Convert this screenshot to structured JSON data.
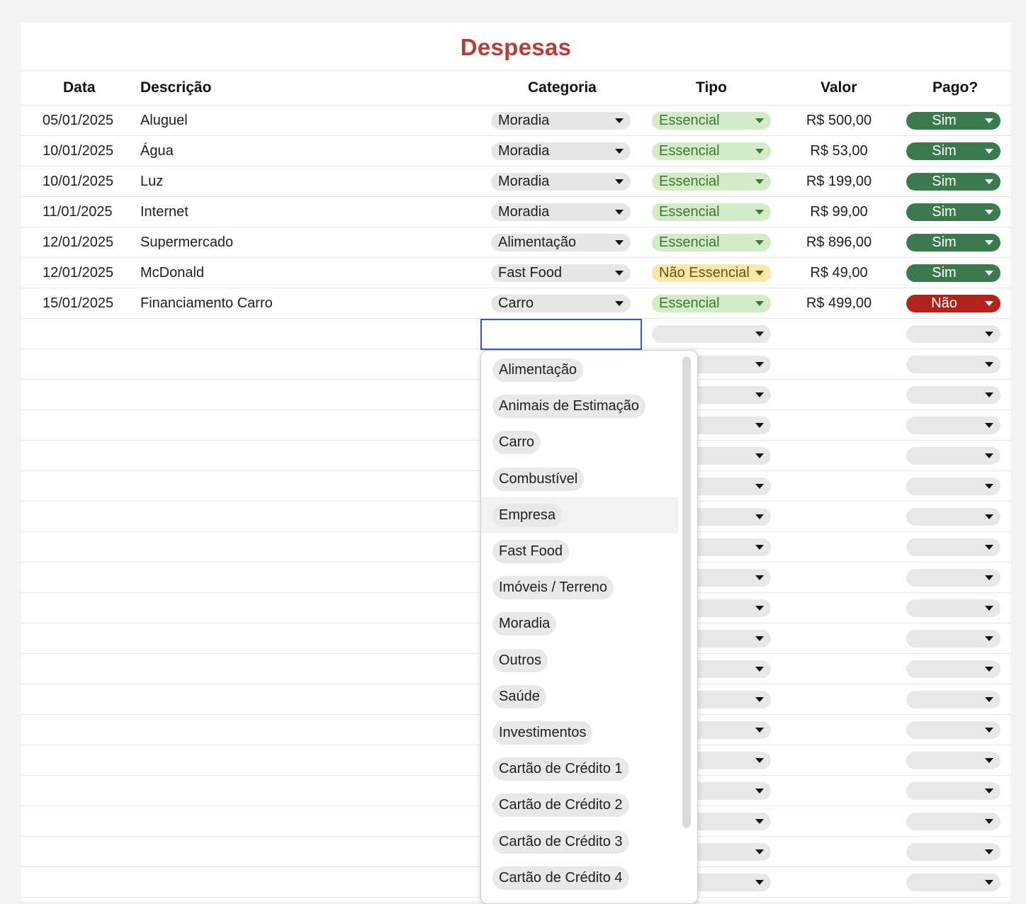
{
  "sheet": {
    "title": "Despesas",
    "headers": {
      "data": "Data",
      "descricao": "Descrição",
      "categoria": "Categoria",
      "tipo": "Tipo",
      "valor": "Valor",
      "pago": "Pago?"
    },
    "rows": [
      {
        "data": "05/01/2025",
        "descricao": "Aluguel",
        "categoria": "Moradia",
        "tipo": "Essencial",
        "valor": "R$ 500,00",
        "pago": "Sim"
      },
      {
        "data": "10/01/2025",
        "descricao": "Água",
        "categoria": "Moradia",
        "tipo": "Essencial",
        "valor": "R$ 53,00",
        "pago": "Sim"
      },
      {
        "data": "10/01/2025",
        "descricao": "Luz",
        "categoria": "Moradia",
        "tipo": "Essencial",
        "valor": "R$ 199,00",
        "pago": "Sim"
      },
      {
        "data": "11/01/2025",
        "descricao": "Internet",
        "categoria": "Moradia",
        "tipo": "Essencial",
        "valor": "R$ 99,00",
        "pago": "Sim"
      },
      {
        "data": "12/01/2025",
        "descricao": "Supermercado",
        "categoria": "Alimentação",
        "tipo": "Essencial",
        "valor": "R$ 896,00",
        "pago": "Sim"
      },
      {
        "data": "12/01/2025",
        "descricao": "McDonald",
        "categoria": "Fast Food",
        "tipo": "Não Essencial",
        "valor": "R$ 49,00",
        "pago": "Sim"
      },
      {
        "data": "15/01/2025",
        "descricao": "Financiamento Carro",
        "categoria": "Carro",
        "tipo": "Essencial",
        "valor": "R$ 499,00",
        "pago": "Não"
      }
    ],
    "empty_rows": 19
  },
  "dropdown": {
    "hovered_option": "Empresa",
    "options": [
      "Alimentação",
      "Animais de Estimação",
      "Carro",
      "Combustível",
      "Empresa",
      "Fast Food",
      "Imóveis / Terreno",
      "Moradia",
      "Outros",
      "Saúde",
      "Investimentos",
      "Cartão de Crédito 1",
      "Cartão de Crédito 2",
      "Cartão de Crédito 3",
      "Cartão de Crédito 4"
    ]
  },
  "colors": {
    "title": "#b73e36",
    "tipo_essencial_bg": "#d4ebc7",
    "tipo_essencial_text": "#3c7a2f",
    "tipo_nao_essencial_bg": "#fbe7a9",
    "pago_sim_bg": "#3a7a4d",
    "pago_nao_bg": "#b0231b",
    "edit_border": "#2d5cc8"
  },
  "icons": {
    "chip_arrow": "caret-down-icon"
  }
}
